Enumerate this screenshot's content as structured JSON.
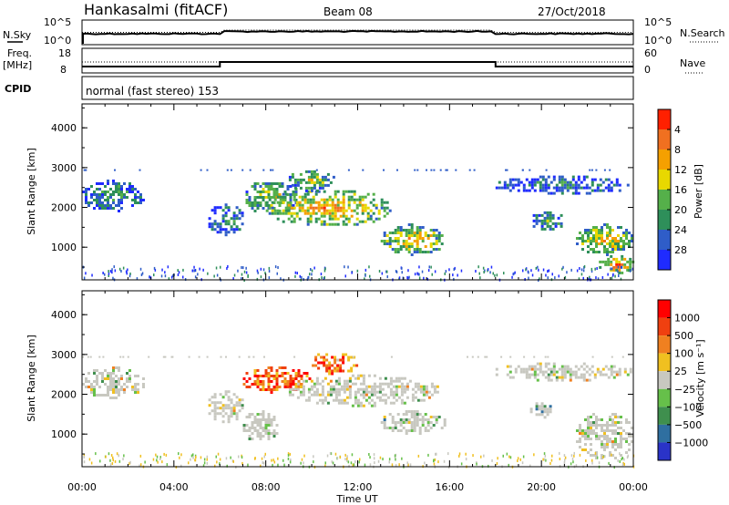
{
  "header": {
    "station": "Hankasalmi (fitACF)",
    "beam": "Beam 08",
    "date": "27/Oct/2018"
  },
  "top_panels": {
    "nsky_label": "N.Sky",
    "nsearch_label": "N.Search",
    "noise_ticks": [
      "10^5",
      "10^0"
    ],
    "freq_label": "Freq.",
    "freq_unit": "[MHz]",
    "freq_ticks": [
      "18",
      "8"
    ],
    "nave_label": "Nave",
    "nave_ticks": [
      "60",
      "0"
    ],
    "cpid_label": "CPID",
    "cpid_text": "normal (fast stereo) 153"
  },
  "colors": {
    "power": [
      "#1f2bff",
      "#2f5dc8",
      "#2e8f5a",
      "#55b04a",
      "#e8d800",
      "#f5a000",
      "#f07020",
      "#ff2000"
    ],
    "velocity": [
      "#2a33c8",
      "#2f6fa0",
      "#3f8f4e",
      "#66c04a",
      "#c8c8c0",
      "#f0c020",
      "#f08020",
      "#f04010",
      "#ff0000"
    ],
    "ground_scatter": "#c8c8c0"
  },
  "chart_data": [
    {
      "type": "heatmap",
      "title": "",
      "xlabel": "",
      "ylabel": "Slant Range [km]",
      "xlim": [
        0,
        24
      ],
      "ylim": [
        180,
        4600
      ],
      "x_ticks": [
        "00:00",
        "04:00",
        "08:00",
        "12:00",
        "16:00",
        "20:00",
        "00:00"
      ],
      "y_ticks": [
        "1000",
        "2000",
        "3000",
        "4000"
      ],
      "colorbar_label": "Power [dB]",
      "colorbar_ticks": [
        "4",
        "8",
        "12",
        "16",
        "20",
        "24",
        "28"
      ],
      "colorbar_range": [
        0,
        32
      ],
      "regions": [
        {
          "t0": 0.0,
          "t1": 2.7,
          "r0": 1900,
          "r1": 2700,
          "level": 0.35
        },
        {
          "t0": 5.5,
          "t1": 7.0,
          "r0": 1300,
          "r1": 2100,
          "level": 0.3
        },
        {
          "t0": 7.0,
          "t1": 9.5,
          "r0": 1800,
          "r1": 2700,
          "level": 0.6
        },
        {
          "t0": 8.0,
          "t1": 13.5,
          "r0": 1500,
          "r1": 2500,
          "level": 0.75
        },
        {
          "t0": 9.0,
          "t1": 11.0,
          "r0": 2400,
          "r1": 3000,
          "level": 0.5
        },
        {
          "t0": 13.0,
          "t1": 15.8,
          "r0": 800,
          "r1": 1600,
          "level": 0.7
        },
        {
          "t0": 19.5,
          "t1": 21.0,
          "r0": 1400,
          "r1": 1900,
          "level": 0.45
        },
        {
          "t0": 21.5,
          "t1": 24.0,
          "r0": 800,
          "r1": 1600,
          "level": 0.7
        },
        {
          "t0": 22.5,
          "t1": 24.0,
          "r0": 300,
          "r1": 800,
          "level": 0.85
        },
        {
          "t0": 18.0,
          "t1": 24.0,
          "r0": 2300,
          "r1": 2800,
          "level": 0.3
        }
      ]
    },
    {
      "type": "heatmap",
      "title": "",
      "xlabel": "Time UT",
      "ylabel": "Slant Range [km]",
      "xlim": [
        0,
        24
      ],
      "ylim": [
        180,
        4600
      ],
      "x_ticks": [
        "00:00",
        "04:00",
        "08:00",
        "12:00",
        "16:00",
        "20:00",
        "00:00"
      ],
      "y_ticks": [
        "1000",
        "2000",
        "3000",
        "4000"
      ],
      "colorbar_label": "Velocity [m s⁻¹]",
      "colorbar_ticks": [
        "1000",
        "500",
        "100",
        "25",
        "−25",
        "−100",
        "−500",
        "−1000"
      ],
      "colorbar_range": [
        -1200,
        1200
      ],
      "regions": [
        {
          "t0": 0.0,
          "t1": 2.7,
          "r0": 1900,
          "r1": 2700,
          "level": 0.5
        },
        {
          "t0": 5.5,
          "t1": 7.0,
          "r0": 1300,
          "r1": 2100,
          "level": 0.5
        },
        {
          "t0": 7.0,
          "t1": 10.0,
          "r0": 2000,
          "r1": 2700,
          "level": 0.8
        },
        {
          "t0": 9.0,
          "t1": 15.5,
          "r0": 1700,
          "r1": 2500,
          "level": 0.5
        },
        {
          "t0": 10.0,
          "t1": 12.0,
          "r0": 2500,
          "r1": 3100,
          "level": 0.75
        },
        {
          "t0": 13.0,
          "t1": 15.8,
          "r0": 1000,
          "r1": 1600,
          "level": 0.4
        },
        {
          "t0": 19.5,
          "t1": 20.5,
          "r0": 1400,
          "r1": 1800,
          "level": 0.3
        },
        {
          "t0": 21.5,
          "t1": 24.0,
          "r0": 300,
          "r1": 1600,
          "level": 0.5
        },
        {
          "t0": 18.0,
          "t1": 24.0,
          "r0": 2300,
          "r1": 2800,
          "level": 0.5
        },
        {
          "t0": 7.0,
          "t1": 8.5,
          "r0": 800,
          "r1": 1600,
          "level": 0.35
        }
      ]
    }
  ]
}
